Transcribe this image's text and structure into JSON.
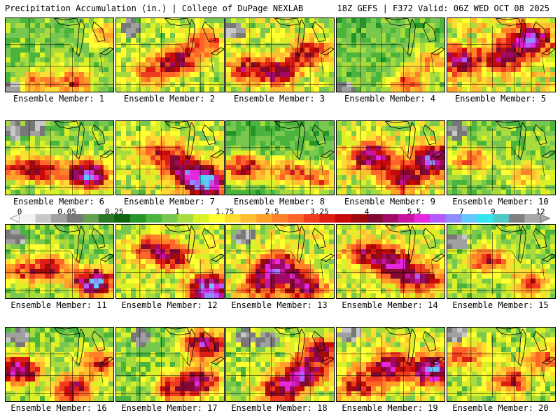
{
  "header": {
    "title": "Precipitation Accumulation (in.) | College of DuPage NEXLAB",
    "run_info": "18Z GEFS | F372 Valid: 06Z WED OCT 08 2025"
  },
  "members": [
    {
      "label": "Ensemble Member: 1",
      "hot": [
        [
          0.62,
          0.82,
          2.4
        ],
        [
          0.28,
          0.85,
          1.8
        ],
        [
          0.92,
          0.2,
          1.6
        ]
      ],
      "base": 0.9,
      "grey": [
        [
          0.02,
          0.92
        ]
      ]
    },
    {
      "label": "Ensemble Member: 2",
      "hot": [
        [
          0.55,
          0.55,
          3.0
        ],
        [
          0.8,
          0.3,
          2.2
        ],
        [
          0.3,
          0.7,
          1.8
        ]
      ],
      "base": 1.2,
      "grey": [
        [
          0.12,
          0.1
        ]
      ]
    },
    {
      "label": "Ensemble Member: 3",
      "hot": [
        [
          0.45,
          0.7,
          3.2
        ],
        [
          0.75,
          0.45,
          2.8
        ],
        [
          0.15,
          0.65,
          2.5
        ]
      ],
      "base": 1.3,
      "grey": [
        [
          0.05,
          0.15
        ]
      ]
    },
    {
      "label": "Ensemble Member: 4",
      "hot": [
        [
          0.65,
          0.85,
          2.2
        ],
        [
          0.85,
          0.55,
          1.6
        ]
      ],
      "base": 0.8,
      "grey": [
        [
          0.05,
          0.95
        ]
      ]
    },
    {
      "label": "Ensemble Member: 5",
      "hot": [
        [
          0.75,
          0.25,
          4.5
        ],
        [
          0.5,
          0.5,
          3.0
        ],
        [
          0.1,
          0.55,
          3.5
        ]
      ],
      "base": 1.6,
      "grey": []
    },
    {
      "label": "Ensemble Member: 6",
      "hot": [
        [
          0.75,
          0.7,
          5.0
        ],
        [
          0.35,
          0.65,
          2.5
        ],
        [
          0.1,
          0.6,
          2.0
        ]
      ],
      "base": 1.0,
      "grey": [
        [
          0.05,
          0.1
        ],
        [
          0.25,
          0.05
        ]
      ]
    },
    {
      "label": "Ensemble Member: 7",
      "hot": [
        [
          0.8,
          0.8,
          6.5
        ],
        [
          0.4,
          0.4,
          2.0
        ],
        [
          0.6,
          0.6,
          3.0
        ]
      ],
      "base": 1.3,
      "grey": []
    },
    {
      "label": "Ensemble Member: 8",
      "hot": [
        [
          0.15,
          0.6,
          3.5
        ],
        [
          0.55,
          0.65,
          2.5
        ],
        [
          0.85,
          0.75,
          2.0
        ]
      ],
      "base": 0.7,
      "grey": []
    },
    {
      "label": "Ensemble Member: 9",
      "hot": [
        [
          0.3,
          0.45,
          4.0
        ],
        [
          0.85,
          0.5,
          5.0
        ],
        [
          0.6,
          0.75,
          3.0
        ]
      ],
      "base": 1.4,
      "grey": []
    },
    {
      "label": "Ensemble Member: 10",
      "hot": [
        [
          0.2,
          0.5,
          2.0
        ],
        [
          0.7,
          0.7,
          1.5
        ]
      ],
      "base": 0.9,
      "grey": [
        [
          0.05,
          0.1
        ]
      ]
    },
    {
      "label": "Ensemble Member: 11",
      "hot": [
        [
          0.8,
          0.75,
          5.5
        ],
        [
          0.4,
          0.55,
          2.5
        ],
        [
          0.15,
          0.6,
          2.0
        ]
      ],
      "base": 1.0,
      "grey": [
        [
          0.05,
          0.15
        ]
      ]
    },
    {
      "label": "Ensemble Member: 12",
      "hot": [
        [
          0.85,
          0.85,
          6.0
        ],
        [
          0.5,
          0.4,
          2.5
        ],
        [
          0.3,
          0.3,
          2.2
        ]
      ],
      "base": 1.3,
      "grey": []
    },
    {
      "label": "Ensemble Member: 13",
      "hot": [
        [
          0.45,
          0.55,
          4.5
        ],
        [
          0.7,
          0.8,
          3.5
        ],
        [
          0.3,
          0.8,
          2.8
        ]
      ],
      "base": 1.4,
      "grey": [
        [
          0.15,
          0.12
        ]
      ]
    },
    {
      "label": "Ensemble Member: 14",
      "hot": [
        [
          0.5,
          0.5,
          4.0
        ],
        [
          0.75,
          0.7,
          3.5
        ],
        [
          0.25,
          0.35,
          2.5
        ]
      ],
      "base": 1.4,
      "grey": []
    },
    {
      "label": "Ensemble Member: 15",
      "hot": [
        [
          0.35,
          0.45,
          2.5
        ],
        [
          0.75,
          0.75,
          2.0
        ]
      ],
      "base": 1.0,
      "grey": [
        [
          0.05,
          0.2
        ]
      ]
    },
    {
      "label": "Ensemble Member: 16",
      "hot": [
        [
          0.1,
          0.55,
          4.5
        ],
        [
          0.6,
          0.8,
          3.5
        ],
        [
          0.85,
          0.45,
          2.5
        ]
      ],
      "base": 1.0,
      "grey": [
        [
          0.1,
          0.1
        ]
      ]
    },
    {
      "label": "Ensemble Member: 17",
      "hot": [
        [
          0.8,
          0.2,
          4.5
        ],
        [
          0.75,
          0.7,
          4.0
        ],
        [
          0.5,
          0.8,
          2.5
        ]
      ],
      "base": 1.0,
      "grey": [
        [
          0.2,
          0.1
        ]
      ]
    },
    {
      "label": "Ensemble Member: 18",
      "hot": [
        [
          0.7,
          0.6,
          4.0
        ],
        [
          0.5,
          0.8,
          3.5
        ],
        [
          0.85,
          0.3,
          3.0
        ]
      ],
      "base": 1.2,
      "grey": [
        [
          0.35,
          0.15
        ],
        [
          0.15,
          0.1
        ]
      ]
    },
    {
      "label": "Ensemble Member: 19",
      "hot": [
        [
          0.85,
          0.55,
          5.0
        ],
        [
          0.45,
          0.5,
          3.5
        ],
        [
          0.2,
          0.75,
          2.5
        ]
      ],
      "base": 1.4,
      "grey": [
        [
          0.1,
          0.05
        ]
      ]
    },
    {
      "label": "Ensemble Member: 20",
      "hot": [
        [
          0.55,
          0.7,
          2.5
        ],
        [
          0.85,
          0.4,
          2.0
        ],
        [
          0.15,
          0.35,
          2.2
        ]
      ],
      "base": 1.1,
      "grey": [
        [
          0.05,
          0.05
        ]
      ]
    }
  ],
  "colorbar": {
    "ticks": [
      {
        "label": "0",
        "value": 0
      },
      {
        "label": "0.05",
        "value": 0.05
      },
      {
        "label": "0.25",
        "value": 0.25
      },
      {
        "label": "1",
        "value": 1
      },
      {
        "label": "1.75",
        "value": 1.75
      },
      {
        "label": "2.5",
        "value": 2.5
      },
      {
        "label": "3.25",
        "value": 3.25
      },
      {
        "label": "4",
        "value": 4
      },
      {
        "label": "5.5",
        "value": 5.5
      },
      {
        "label": "7",
        "value": 7
      },
      {
        "label": "9",
        "value": 9
      },
      {
        "label": "12",
        "value": 12
      }
    ],
    "levels": [
      0,
      0.01,
      0.03,
      0.05,
      0.1,
      0.15,
      0.25,
      0.35,
      0.5,
      0.75,
      1,
      1.25,
      1.5,
      1.75,
      2,
      2.25,
      2.5,
      2.75,
      3,
      3.25,
      3.5,
      3.75,
      4,
      4.5,
      5,
      5.5,
      6,
      6.5,
      7,
      8,
      9,
      10,
      11,
      12
    ],
    "colors": [
      "#f2f2f2",
      "#c8c8c8",
      "#a0a0a0",
      "#787878",
      "#64a050",
      "#287828",
      "#0f6414",
      "#249629",
      "#4bb43c",
      "#78c850",
      "#a8dc3c",
      "#dcf028",
      "#ffff32",
      "#ffdc32",
      "#ffbe32",
      "#ffa028",
      "#ff8228",
      "#ff6428",
      "#f03c1e",
      "#dc1e14",
      "#c80a0a",
      "#a00a0a",
      "#820a32",
      "#a00a64",
      "#c814a0",
      "#e628dc",
      "#b45aff",
      "#8c8cff",
      "#64c8ff",
      "#32e6f0",
      "#50c8c8",
      "#808080",
      "#a8a8a8"
    ]
  }
}
